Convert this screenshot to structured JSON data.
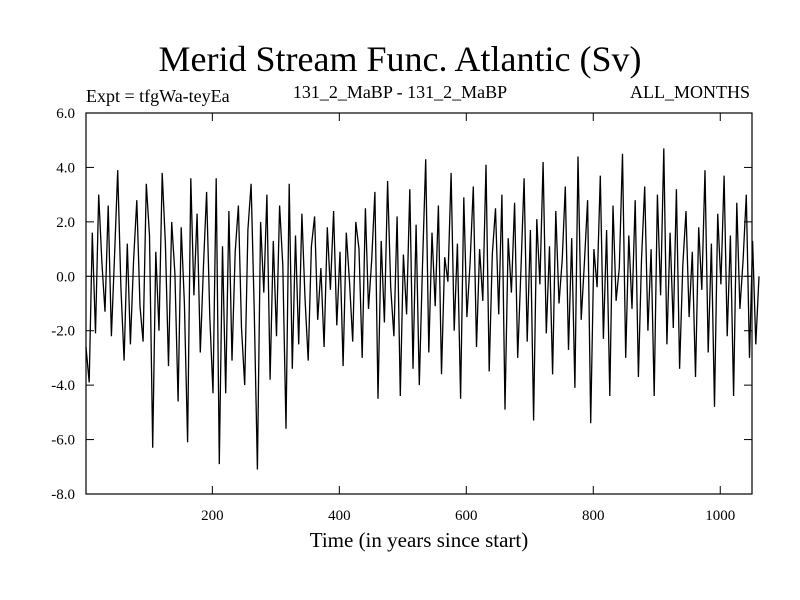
{
  "chart_data": {
    "type": "line",
    "title": "Merid Stream Func. Atlantic (Sv)",
    "subtitle_left": "Expt = tfgWa-teyEa",
    "subtitle_center": "131_2_MaBP - 131_2_MaBP",
    "subtitle_right": "ALL_MONTHS",
    "xlabel": "Time (in years since start)",
    "ylabel": "",
    "xlim": [
      1,
      1050
    ],
    "ylim": [
      -8.0,
      6.0
    ],
    "x_ticks": [
      200,
      400,
      600,
      800,
      1000
    ],
    "y_ticks": [
      -8.0,
      -6.0,
      -4.0,
      -2.0,
      0.0,
      2.0,
      4.0,
      6.0
    ],
    "zero_line": 0.0,
    "grid": false,
    "series": [
      {
        "color": "#000000",
        "x_start": 1,
        "x_step": 5,
        "values": [
          -2.6,
          -3.9,
          1.6,
          -2.1,
          3.0,
          0.5,
          -1.3,
          2.6,
          -2.2,
          0.8,
          3.9,
          -0.4,
          -3.1,
          1.2,
          -2.5,
          0.6,
          2.8,
          -1.1,
          -2.4,
          3.4,
          1.5,
          -6.3,
          0.9,
          -2.0,
          3.8,
          1.2,
          -3.3,
          2.0,
          0.1,
          -4.6,
          1.8,
          -1.0,
          -6.1,
          3.6,
          -0.7,
          2.3,
          -2.8,
          0.4,
          3.1,
          -1.5,
          -4.3,
          3.6,
          -6.9,
          1.1,
          -4.3,
          2.4,
          -3.1,
          0.9,
          2.6,
          -1.9,
          -4.0,
          1.7,
          3.4,
          -1.2,
          -7.1,
          2.0,
          -0.6,
          3.0,
          -3.8,
          1.3,
          -2.2,
          2.6,
          0.4,
          -5.6,
          3.4,
          -3.4,
          1.5,
          -2.5,
          2.3,
          -0.8,
          -3.1,
          1.1,
          2.2,
          -1.6,
          0.3,
          -2.6,
          1.8,
          -0.5,
          2.4,
          -1.8,
          0.9,
          -3.3,
          1.6,
          -0.2,
          -2.4,
          2.0,
          1.0,
          -3.0,
          2.5,
          -1.2,
          0.6,
          3.1,
          -4.5,
          1.3,
          -1.7,
          3.5,
          -0.4,
          -2.2,
          2.2,
          -4.4,
          0.8,
          -1.4,
          3.2,
          -3.4,
          1.9,
          -4.0,
          0.4,
          4.3,
          -2.8,
          1.6,
          -1.1,
          2.6,
          -3.6,
          0.7,
          -0.2,
          3.8,
          -2.0,
          1.2,
          -4.5,
          2.9,
          -1.5,
          0.5,
          3.3,
          -2.6,
          1.0,
          -0.9,
          4.1,
          -3.5,
          0.8,
          2.5,
          -1.4,
          3.0,
          -4.9,
          1.4,
          -0.6,
          2.7,
          -3.0,
          0.2,
          3.6,
          -2.4,
          1.7,
          -5.3,
          2.1,
          -0.3,
          4.2,
          -2.1,
          1.1,
          -3.6,
          2.4,
          -1.0,
          0.6,
          3.3,
          -2.7,
          1.4,
          -4.1,
          4.4,
          -1.6,
          0.5,
          2.8,
          -5.4,
          1.0,
          -0.4,
          3.7,
          -2.3,
          1.7,
          -4.4,
          2.6,
          -0.9,
          0.3,
          4.5,
          -3.0,
          1.5,
          -1.2,
          2.8,
          -3.7,
          0.6,
          3.3,
          -2.0,
          1.0,
          -4.4,
          3.0,
          -0.7,
          4.7,
          -2.5,
          1.6,
          -1.9,
          3.2,
          -3.4,
          0.4,
          2.4,
          -1.5,
          0.9,
          -3.7,
          1.8,
          -0.5,
          3.9,
          -2.8,
          1.2,
          -4.8,
          2.3,
          -0.3,
          3.7,
          -2.2,
          1.5,
          -4.4,
          2.7,
          -1.2,
          0.6,
          3.0,
          -3.0,
          1.3,
          -2.5,
          0.0
        ]
      }
    ]
  }
}
